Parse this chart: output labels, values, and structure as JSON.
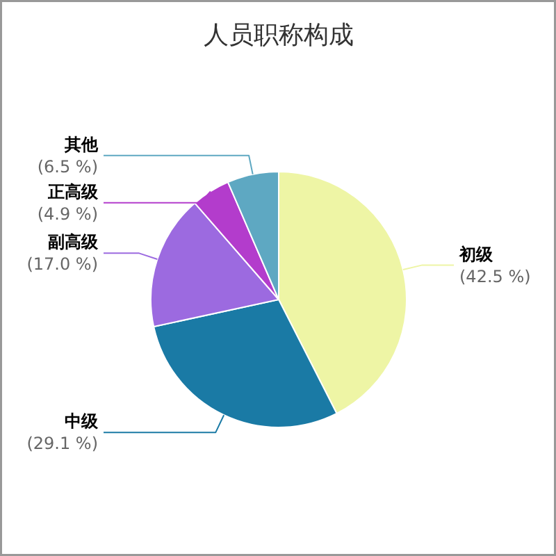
{
  "chart_data": {
    "type": "pie",
    "title": "人员职称构成",
    "categories": [
      "初级",
      "中级",
      "副高级",
      "正高级",
      "其他"
    ],
    "values": [
      42.5,
      29.1,
      17.0,
      4.9,
      6.5
    ],
    "colors": [
      "#eef5a5",
      "#1a7aa5",
      "#9c6ae0",
      "#b33ccc",
      "#5ea8c2"
    ],
    "value_labels": [
      "(42.5 %)",
      "(29.1 %)",
      "(17.0 %)",
      "(4.9 %)",
      "(6.5 %)"
    ]
  }
}
